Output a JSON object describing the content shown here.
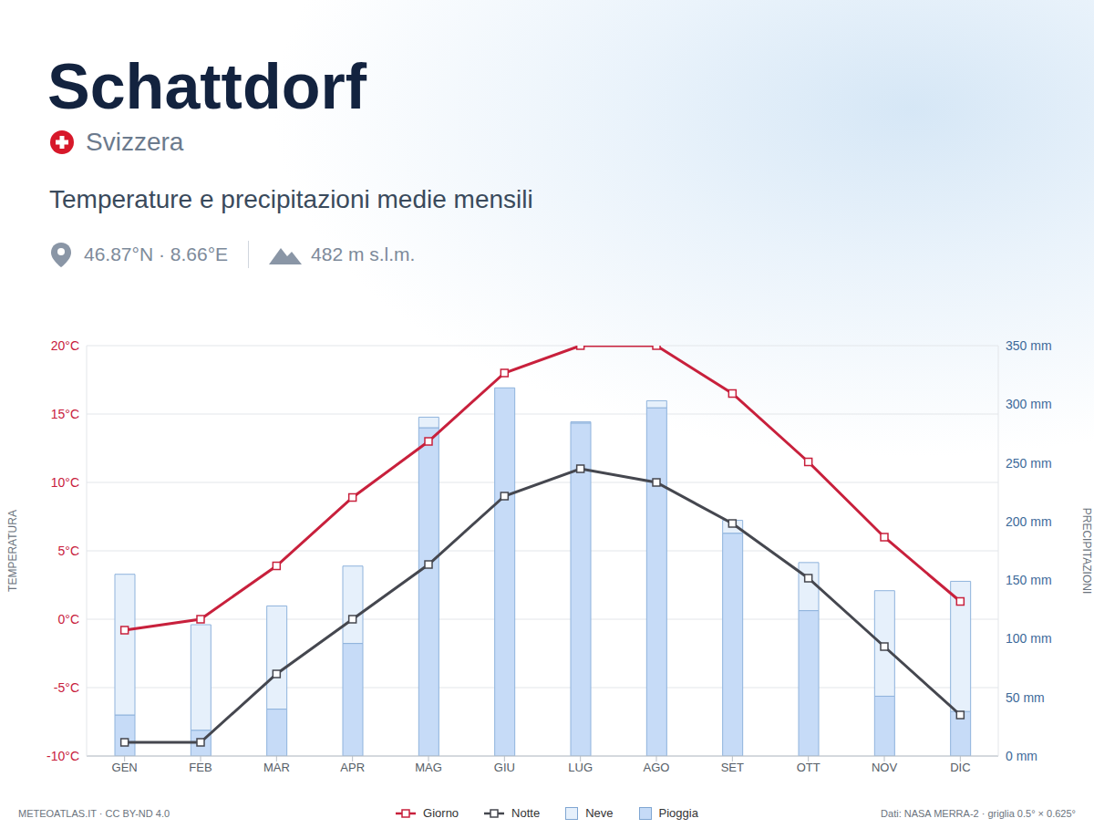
{
  "chart_data": {
    "type": "combo",
    "title": "Schattdorf",
    "country": "Svizzera",
    "subtitle": "Temperature e precipitazioni medie mensili",
    "location_label": "46.87°N · 8.66°E",
    "elevation_label": "482 m s.l.m.",
    "footer_left": "METEOATLAS.IT · CC BY-ND 4.0",
    "footer_right": "Dati: NASA MERRA-2 · griglia 0.5° × 0.625°",
    "ylabel": "TEMPERATURA",
    "y2label": "PRECIPITAZIONI",
    "categories": [
      "GEN",
      "FEB",
      "MAR",
      "APR",
      "MAG",
      "GIU",
      "LUG",
      "AGO",
      "SET",
      "OTT",
      "NOV",
      "DIC"
    ],
    "ylim": [
      -10,
      20
    ],
    "yticks": [
      {
        "value": -10,
        "label": "-10°C"
      },
      {
        "value": -5,
        "label": "-5°C"
      },
      {
        "value": 0,
        "label": "0°C"
      },
      {
        "value": 5,
        "label": "5°C"
      },
      {
        "value": 10,
        "label": "10°C"
      },
      {
        "value": 15,
        "label": "15°C"
      },
      {
        "value": 20,
        "label": "20°C"
      }
    ],
    "y2lim": [
      0,
      350
    ],
    "y2ticks": [
      {
        "value": 0,
        "label": "0 mm"
      },
      {
        "value": 50,
        "label": "50 mm"
      },
      {
        "value": 100,
        "label": "100 mm"
      },
      {
        "value": 150,
        "label": "150 mm"
      },
      {
        "value": 200,
        "label": "200 mm"
      },
      {
        "value": 250,
        "label": "250 mm"
      },
      {
        "value": 300,
        "label": "300 mm"
      },
      {
        "value": 350,
        "label": "350 mm"
      }
    ],
    "grid": true,
    "stacked": true,
    "legend": "bottom",
    "series": [
      {
        "name": "Giorno",
        "type": "line",
        "color": "#c8203c",
        "marker": "square",
        "values": [
          -0.8,
          0,
          3.9,
          8.9,
          13,
          18,
          20,
          20,
          16.5,
          11.5,
          6,
          1.3
        ]
      },
      {
        "name": "Notte",
        "type": "line",
        "color": "#45474f",
        "marker": "square",
        "values": [
          -9,
          -9,
          -4,
          0,
          4,
          9,
          11,
          10,
          7,
          3,
          -2,
          -7
        ]
      },
      {
        "name": "Neve",
        "type": "bar",
        "axis": "y2",
        "color": "#e6f0fb",
        "values": [
          120,
          90,
          88,
          66,
          9,
          0,
          1,
          6,
          11,
          41,
          90,
          111
        ]
      },
      {
        "name": "Pioggia",
        "type": "bar",
        "axis": "y2",
        "color": "#c6dbf7",
        "values": [
          35,
          22,
          40,
          96,
          280,
          314,
          284,
          297,
          190,
          124,
          51,
          38
        ]
      }
    ]
  }
}
